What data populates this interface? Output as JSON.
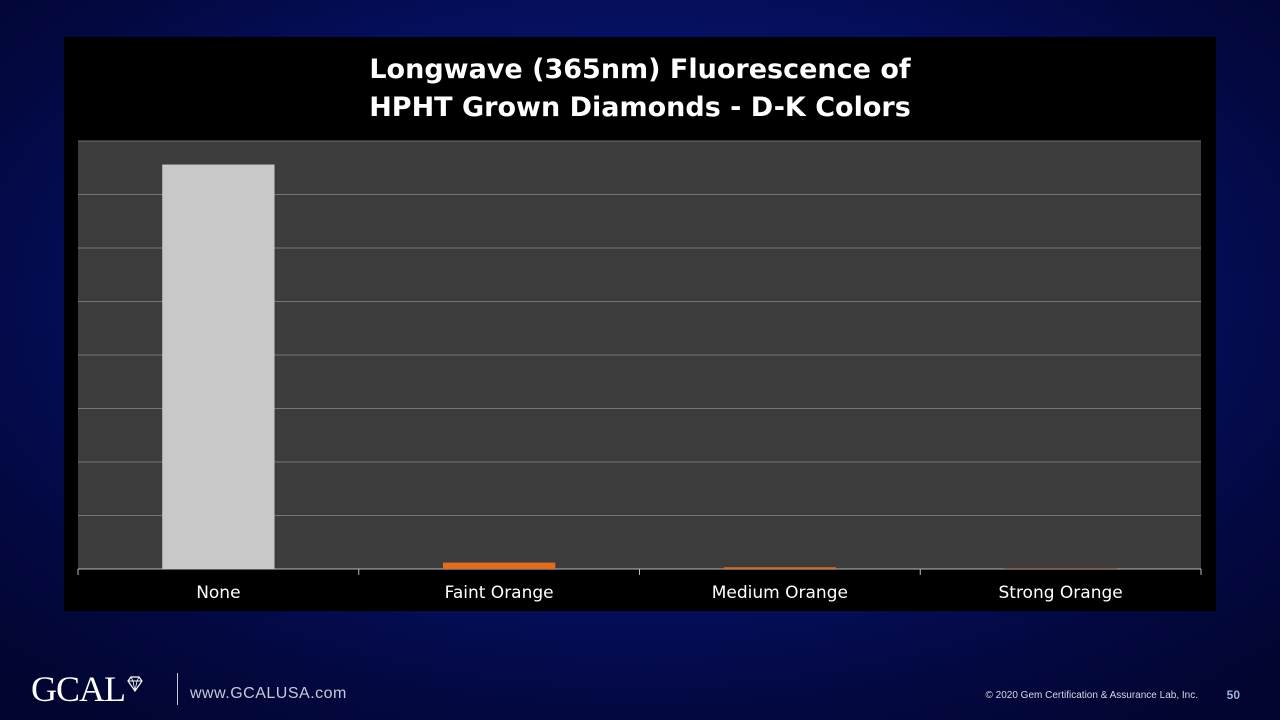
{
  "slide": {
    "page_number": "50",
    "website": "www.GCALUSA.com",
    "copyright": "© 2020 Gem Certification & Assurance Lab, Inc.",
    "logo_text": "GCAL",
    "logo_icon": "diamond-icon"
  },
  "chart_data": {
    "type": "bar",
    "title_lines": [
      "Longwave (365nm) Fluorescence of",
      "HPHT Grown Diamonds - D-K Colors"
    ],
    "categories": [
      "None",
      "Faint Orange",
      "Medium Orange",
      "Strong Orange"
    ],
    "values": [
      94.5,
      1.5,
      0.4,
      0.1
    ],
    "ylim": [
      0,
      100
    ],
    "gridlines": 8,
    "grid": true,
    "colors": [
      "#c8c8c8",
      "#e36c1f",
      "#e36c1f",
      "#e36c1f"
    ],
    "plot_background": "#3c3c3c",
    "y_tick_labels_shown": false
  }
}
